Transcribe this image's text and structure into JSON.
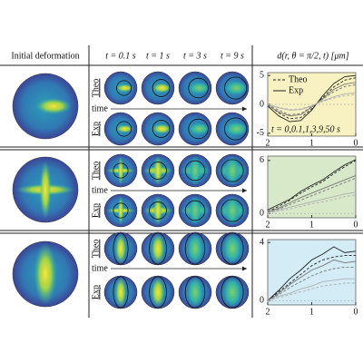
{
  "header": {
    "initial": "Initial deformation",
    "times": [
      "t = 0.1 s",
      "t = 1 s",
      "t = 3 s",
      "t = 9 s"
    ],
    "plot": "d(r, θ = π/2, t) [μm]"
  },
  "row_labels": {
    "theo": "Theo",
    "exp": "Exp",
    "time": "time"
  },
  "legend": {
    "theo": "Theo",
    "exp": "Exp",
    "time_note": "t = 0,0.1,1,3,9,50 s"
  },
  "panels": [
    {
      "background": "#f8f2c2",
      "xlim": [
        2,
        0
      ],
      "ylim": [
        -5.5,
        5.5
      ],
      "xticks": [
        2,
        1,
        0
      ],
      "yticks": [
        5,
        0,
        -5
      ],
      "x": [
        2,
        1.75,
        1.5,
        1.25,
        1,
        0.75,
        0.5,
        0.25,
        0
      ],
      "colors": [
        "#222222",
        "#777777",
        "#b0b0b0"
      ],
      "theo": [
        [
          0,
          -1.5,
          -2.5,
          -2.3,
          -0.8,
          1.2,
          3,
          4.2,
          4.6
        ],
        [
          0,
          -1,
          -1.8,
          -1.6,
          -0.4,
          0.9,
          2.2,
          3.1,
          3.4
        ],
        [
          0,
          -0.5,
          -0.9,
          -0.8,
          -0.2,
          0.5,
          1.1,
          1.5,
          1.7
        ]
      ],
      "exp": [
        [
          -0.3,
          -2,
          -3,
          -2.8,
          -1,
          1.5,
          3.6,
          4.8,
          5
        ],
        [
          -0.2,
          -1.3,
          -2,
          -1.8,
          -0.5,
          1,
          2.6,
          3.5,
          3.8
        ],
        [
          0,
          -0.6,
          -1,
          -0.9,
          -0.3,
          0.6,
          1.3,
          1.8,
          2
        ]
      ]
    },
    {
      "background": "#d8e9c9",
      "xlim": [
        2,
        0
      ],
      "ylim": [
        -0.5,
        6.5
      ],
      "xticks": [
        2,
        1,
        0
      ],
      "yticks": [
        6,
        0
      ],
      "x": [
        2,
        1.75,
        1.5,
        1.25,
        1,
        0.75,
        0.5,
        0.25,
        0
      ],
      "colors": [
        "#222222",
        "#777777",
        "#b0b0b0"
      ],
      "theo": [
        [
          0.2,
          0.8,
          1.5,
          2.3,
          3,
          3.6,
          4.5,
          5.3,
          6
        ],
        [
          0.1,
          0.5,
          1,
          1.5,
          2,
          2.5,
          3,
          3.5,
          4
        ],
        [
          0,
          0.3,
          0.5,
          0.8,
          1.1,
          1.3,
          1.6,
          1.9,
          2.1
        ]
      ],
      "exp": [
        [
          0.4,
          1,
          1.6,
          2.5,
          3.2,
          3.8,
          4.7,
          5.5,
          6.1
        ],
        [
          0.2,
          0.6,
          1.2,
          1.8,
          2.3,
          2.8,
          3.3,
          3.8,
          4.3
        ],
        [
          0.1,
          0.4,
          0.7,
          1,
          1.3,
          1.6,
          1.9,
          2.2,
          2.4
        ]
      ]
    },
    {
      "background": "#d3ecf6",
      "xlim": [
        2,
        0
      ],
      "ylim": [
        -0.3,
        4.2
      ],
      "xticks": [
        2,
        1,
        0
      ],
      "yticks": [
        4,
        0
      ],
      "x": [
        2,
        1.75,
        1.5,
        1.25,
        1,
        0.75,
        0.5,
        0.25,
        0
      ],
      "colors": [
        "#222222",
        "#777777",
        "#b0b0b0"
      ],
      "theo": [
        [
          0,
          0.6,
          1.2,
          1.8,
          2.4,
          2.8,
          3,
          3.1,
          3.1
        ],
        [
          0,
          0.4,
          0.9,
          1.3,
          1.7,
          2,
          2.2,
          2.3,
          2.3
        ],
        [
          0,
          0.2,
          0.4,
          0.6,
          0.8,
          1,
          1.1,
          1.2,
          1.2
        ]
      ],
      "exp": [
        [
          0,
          0.7,
          1.5,
          2.1,
          2.8,
          3.2,
          3.7,
          3.3,
          3.4
        ],
        [
          0,
          0.5,
          1.1,
          1.6,
          2.1,
          2.4,
          2.8,
          2.6,
          2.7
        ],
        [
          0,
          0.3,
          0.5,
          0.8,
          1,
          1.3,
          1.4,
          1.5,
          1.5
        ]
      ]
    }
  ]
}
